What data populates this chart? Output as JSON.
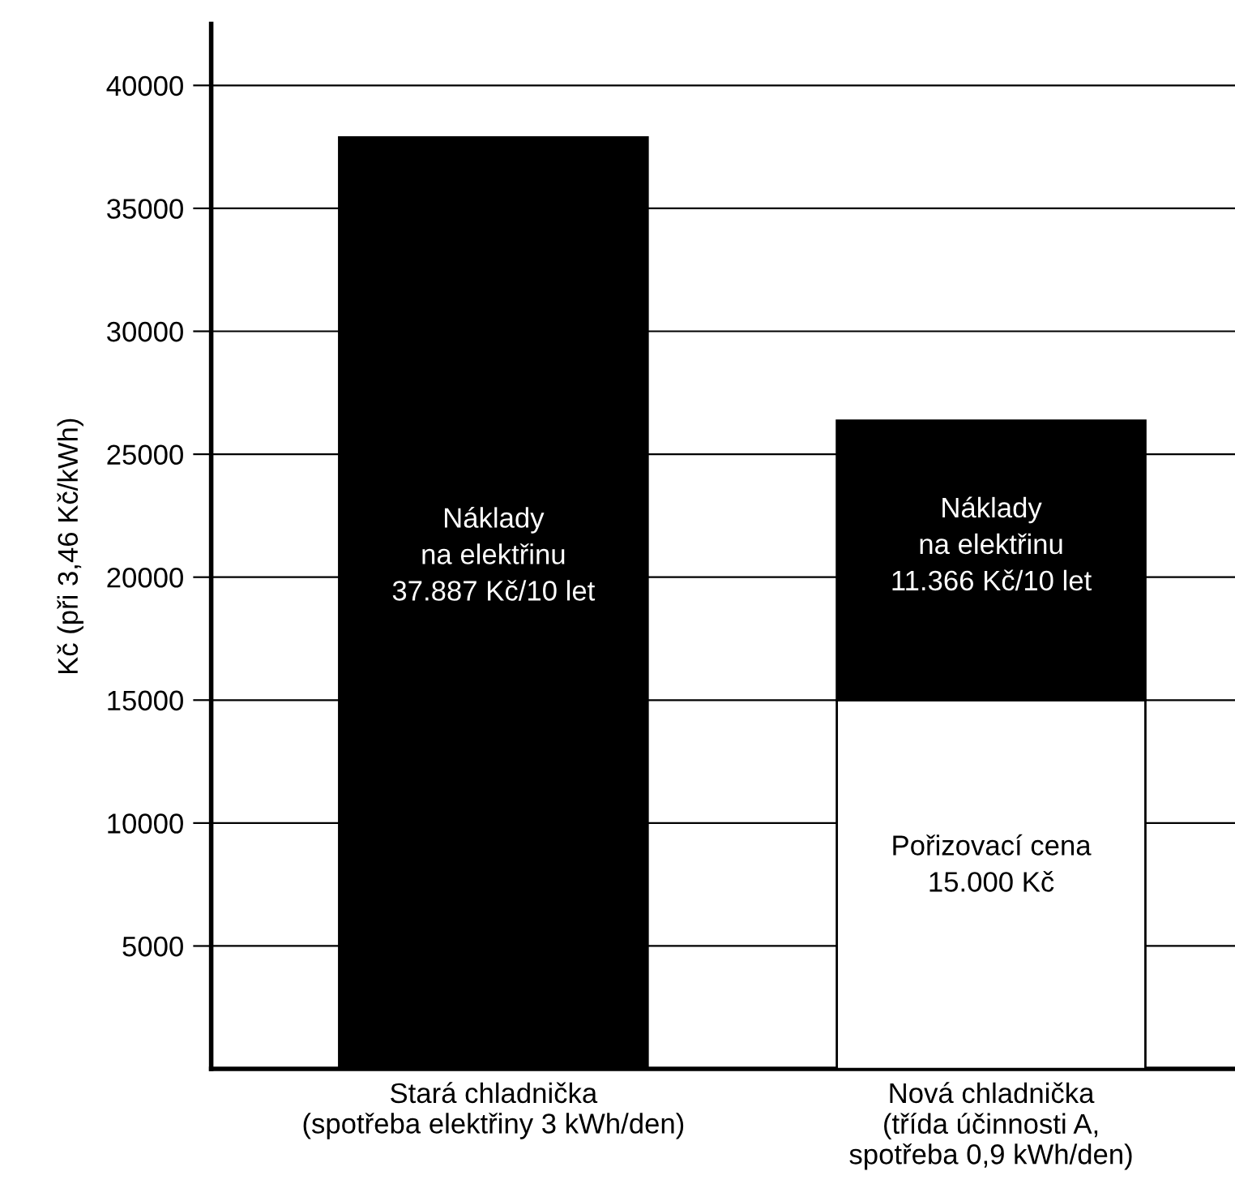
{
  "chart_data": {
    "type": "bar",
    "stacked": true,
    "ylabel": "Kč (při 3,46 Kč/kWh)",
    "categories": [
      "Stará chladnička\n(spotřeba elektřiny 3 kWh/den)",
      "Nová chladnička\n(třída účinnosti A,\nspotřeba 0,9 kWh/den)"
    ],
    "series": [
      {
        "color": "#ffffff",
        "values": [
          0,
          15000
        ]
      },
      {
        "color": "#000000",
        "values": [
          37887,
          11366
        ]
      }
    ],
    "ylim": [
      0,
      42500
    ],
    "yticks": [
      5000,
      10000,
      15000,
      20000,
      25000,
      30000,
      35000,
      40000
    ],
    "grid": "y",
    "annotations": [
      "Náklady\nna elektřinu\n37.887 Kč/10 let",
      "Náklady\nna elektřinu\n11.366 Kč/10 let",
      "Pořizovací cena\n15.000 Kč"
    ]
  }
}
